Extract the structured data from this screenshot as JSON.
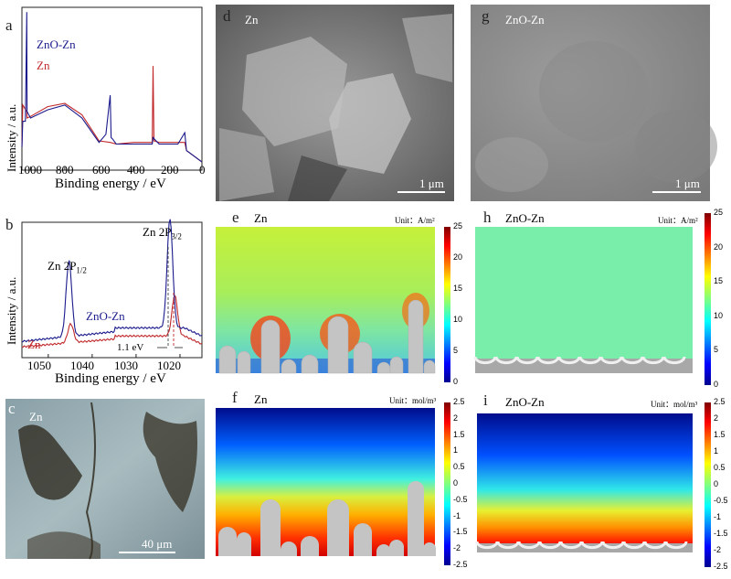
{
  "panel_letters": {
    "a": "a",
    "b": "b",
    "c": "c",
    "d": "d",
    "e": "e",
    "f": "f",
    "g": "g",
    "h": "h",
    "i": "i"
  },
  "colors": {
    "znozn": "#1a1a8c",
    "zn": "#c0282a",
    "axis": "#222222"
  },
  "chart_data": [
    {
      "panel": "a",
      "type": "line",
      "title": "",
      "xlabel": "Binding energy / eV",
      "ylabel": "Intensity / a.u.",
      "xlim": [
        1050,
        0
      ],
      "xticks": [
        "1000",
        "800",
        "600",
        "400",
        "200",
        "0"
      ],
      "legend": [
        "ZnO-Zn",
        "Zn"
      ],
      "series": [
        {
          "name": "ZnO-Zn",
          "x": [
            1050,
            1045,
            1030,
            1022,
            1020,
            1000,
            900,
            800,
            700,
            600,
            560,
            535,
            530,
            520,
            500,
            400,
            290,
            285,
            250,
            140,
            100,
            90,
            0
          ],
          "y": [
            0.14,
            0.3,
            0.3,
            0.97,
            0.36,
            0.32,
            0.37,
            0.4,
            0.32,
            0.17,
            0.22,
            0.46,
            0.2,
            0.19,
            0.16,
            0.16,
            0.16,
            0.2,
            0.16,
            0.16,
            0.23,
            0.12,
            0.05
          ]
        },
        {
          "name": "Zn",
          "x": [
            1050,
            1045,
            1022,
            1020,
            1000,
            900,
            800,
            700,
            600,
            535,
            500,
            400,
            290,
            285,
            280,
            250,
            100,
            90,
            0
          ],
          "y": [
            0.14,
            0.4,
            0.36,
            0.32,
            0.33,
            0.39,
            0.41,
            0.34,
            0.18,
            0.17,
            0.16,
            0.17,
            0.17,
            0.64,
            0.18,
            0.17,
            0.17,
            0.12,
            0.05
          ]
        }
      ]
    },
    {
      "panel": "b",
      "type": "line",
      "title": "",
      "xlabel": "Binding energy / eV",
      "ylabel": "Intensity / a.u.",
      "xlim": [
        1056,
        1015
      ],
      "xticks": [
        "1050",
        "1040",
        "1030",
        "1020"
      ],
      "annotations": [
        "Zn 2P",
        "1/2",
        "Zn 2P",
        "3/2",
        "1.1 eV"
      ],
      "legend": [
        "ZnO-Zn",
        "Zn"
      ],
      "series": [
        {
          "name": "ZnO-Zn",
          "peaks_eV": [
            1045.3,
            1022.3
          ],
          "peak_heights": [
            0.62,
            0.92
          ],
          "baseline": [
            0.12,
            0.22
          ]
        },
        {
          "name": "Zn",
          "peaks_eV": [
            1044.9,
            1021.2
          ],
          "peak_heights": [
            0.18,
            0.38
          ],
          "baseline": [
            0.08,
            0.16
          ]
        }
      ]
    }
  ],
  "panels": {
    "c": {
      "label": "Zn",
      "scale": "40 μm"
    },
    "d": {
      "label": "Zn",
      "scale": "1 μm"
    },
    "g": {
      "label": "ZnO-Zn",
      "scale": "1 μm"
    },
    "e": {
      "label": "Zn",
      "unit": "Unit：A/m²",
      "ticks": [
        "25",
        "20",
        "15",
        "10",
        "5",
        "0"
      ]
    },
    "h": {
      "label": "ZnO-Zn",
      "unit": "Unit：A/m²",
      "ticks": [
        "25",
        "20",
        "15",
        "10",
        "5",
        "0"
      ]
    },
    "f": {
      "label": "Zn",
      "unit": "Unit：mol/m³",
      "ticks": [
        "2.5",
        "2",
        "1.5",
        "1",
        "0.5",
        "0",
        "-0.5",
        "-1",
        "-1.5",
        "-2",
        "-2.5"
      ]
    },
    "i": {
      "label": "ZnO-Zn",
      "unit": "Unit：mol/m³",
      "ticks": [
        "2.5",
        "2",
        "1.5",
        "1",
        "0.5",
        "0",
        "-0.5",
        "-1",
        "-1.5",
        "-2",
        "-2.5"
      ]
    }
  }
}
